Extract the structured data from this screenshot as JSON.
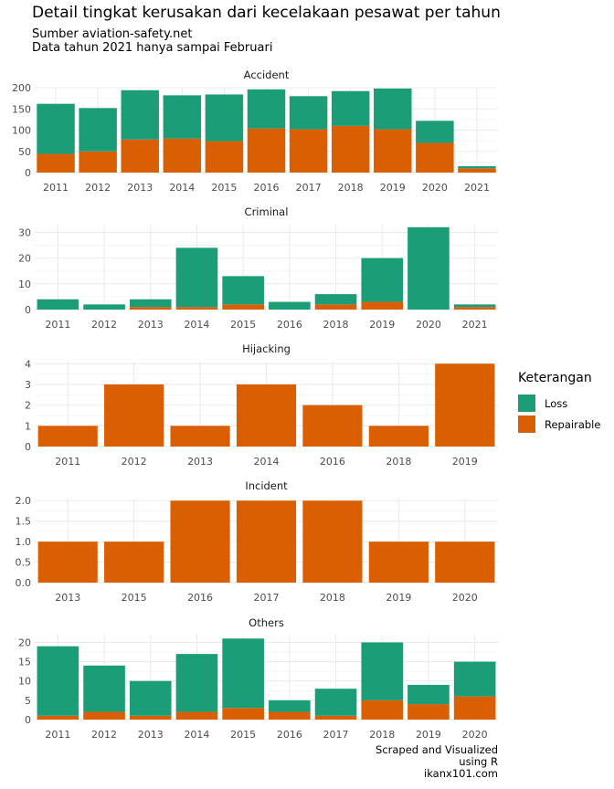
{
  "title": "Detail tingkat kerusakan dari kecelakaan pesawat per tahun",
  "subtitle_lines": [
    "Sumber aviation-safety.net",
    "Data tahun 2021 hanya sampai Februari"
  ],
  "caption_lines": [
    "Scraped and Visualized",
    "using R",
    "ikanx101.com"
  ],
  "legend": {
    "title": "Keterangan",
    "items": [
      {
        "label": "Loss",
        "color": "#1b9e77"
      },
      {
        "label": "Repairable",
        "color": "#d95f02"
      }
    ]
  },
  "chart_data": [
    {
      "type": "bar",
      "stacked": true,
      "title": "Accident",
      "categories": [
        "2011",
        "2012",
        "2013",
        "2014",
        "2015",
        "2016",
        "2017",
        "2018",
        "2019",
        "2020",
        "2021"
      ],
      "series": [
        {
          "name": "Loss",
          "values": [
            118,
            102,
            116,
            102,
            110,
            92,
            78,
            82,
            96,
            52,
            5
          ]
        },
        {
          "name": "Repairable",
          "values": [
            44,
            50,
            78,
            80,
            74,
            104,
            102,
            110,
            102,
            70,
            10
          ]
        }
      ],
      "ylim": [
        0,
        200
      ],
      "yticks": [
        "0",
        "50",
        "100",
        "150",
        "200"
      ]
    },
    {
      "type": "bar",
      "stacked": true,
      "title": "Criminal",
      "categories": [
        "2011",
        "2012",
        "2013",
        "2014",
        "2015",
        "2016",
        "2018",
        "2019",
        "2020",
        "2021"
      ],
      "series": [
        {
          "name": "Loss",
          "values": [
            4,
            2,
            3,
            23,
            11,
            3,
            4,
            17,
            32,
            1
          ]
        },
        {
          "name": "Repairable",
          "values": [
            0,
            0,
            1,
            1,
            2,
            0,
            2,
            3,
            0,
            1
          ]
        }
      ],
      "ylim": [
        0,
        33
      ],
      "yticks": [
        "0",
        "10",
        "20",
        "30"
      ]
    },
    {
      "type": "bar",
      "stacked": true,
      "title": "Hijacking",
      "categories": [
        "2011",
        "2012",
        "2013",
        "2014",
        "2016",
        "2018",
        "2019"
      ],
      "series": [
        {
          "name": "Loss",
          "values": [
            0,
            0,
            0,
            0,
            0,
            0,
            0
          ]
        },
        {
          "name": "Repairable",
          "values": [
            1,
            3,
            1,
            3,
            2,
            1,
            4
          ]
        }
      ],
      "ylim": [
        0,
        4.1
      ],
      "yticks": [
        "0",
        "1",
        "2",
        "3",
        "4"
      ]
    },
    {
      "type": "bar",
      "stacked": true,
      "title": "Incident",
      "categories": [
        "2013",
        "2015",
        "2016",
        "2017",
        "2018",
        "2019",
        "2020"
      ],
      "series": [
        {
          "name": "Loss",
          "values": [
            0,
            0,
            0,
            0,
            0,
            0,
            0
          ]
        },
        {
          "name": "Repairable",
          "values": [
            1,
            1,
            2,
            2,
            2,
            1,
            1
          ]
        }
      ],
      "ylim": [
        0,
        2.05
      ],
      "yticks": [
        "0.0",
        "0.5",
        "1.0",
        "1.5",
        "2.0"
      ]
    },
    {
      "type": "bar",
      "stacked": true,
      "title": "Others",
      "categories": [
        "2011",
        "2012",
        "2013",
        "2014",
        "2015",
        "2016",
        "2017",
        "2018",
        "2019",
        "2020"
      ],
      "series": [
        {
          "name": "Loss",
          "values": [
            18,
            12,
            9,
            15,
            18,
            3,
            7,
            15,
            5,
            9
          ]
        },
        {
          "name": "Repairable",
          "values": [
            1,
            2,
            1,
            2,
            3,
            2,
            1,
            5,
            4,
            6
          ]
        }
      ],
      "ylim": [
        0,
        22
      ],
      "yticks": [
        "0",
        "5",
        "10",
        "15",
        "20"
      ]
    }
  ]
}
